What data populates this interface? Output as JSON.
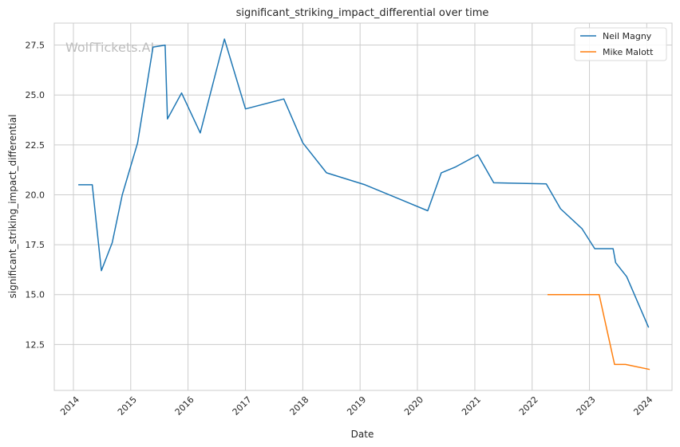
{
  "chart_data": {
    "type": "line",
    "title": "significant_striking_impact_differential over time",
    "xlabel": "Date",
    "ylabel": "significant_striking_impact_differential",
    "watermark": "WolfTickets.AI",
    "legend_position": "top-right",
    "grid": true,
    "xlim": [
      "2013-09-01",
      "2024-06-10"
    ],
    "ylim": [
      10.2,
      28.6
    ],
    "x_ticks": [
      "2014",
      "2015",
      "2016",
      "2017",
      "2018",
      "2019",
      "2020",
      "2021",
      "2022",
      "2023",
      "2024"
    ],
    "y_ticks": [
      "12.5",
      "15.0",
      "17.5",
      "20.0",
      "22.5",
      "25.0",
      "27.5"
    ],
    "series": [
      {
        "name": "Neil Magny",
        "color": "#1f77b4",
        "x": [
          "2014-02-01",
          "2014-05-01",
          "2014-06-28",
          "2014-09-05",
          "2014-11-08",
          "2015-02-14",
          "2015-05-23",
          "2015-08-08",
          "2015-08-23",
          "2015-11-21",
          "2016-03-19",
          "2016-08-20",
          "2017-01-01",
          "2017-09-02",
          "2018-01-01",
          "2018-06-01",
          "2019-02-01",
          "2020-03-07",
          "2020-06-01",
          "2020-09-01",
          "2021-01-20",
          "2021-05-01",
          "2022-04-01",
          "2022-07-01",
          "2022-11-15",
          "2023-02-04",
          "2023-06-01",
          "2023-06-17",
          "2023-08-26",
          "2024-01-13"
        ],
        "y": [
          20.5,
          20.5,
          16.2,
          17.6,
          20.0,
          22.6,
          27.4,
          27.5,
          23.8,
          25.1,
          23.1,
          27.8,
          24.3,
          24.8,
          22.6,
          21.1,
          20.5,
          19.2,
          21.1,
          21.4,
          22.0,
          20.6,
          20.55,
          19.3,
          18.3,
          17.3,
          17.3,
          16.6,
          15.9,
          13.35
        ]
      },
      {
        "name": "Mike Malott",
        "color": "#ff7f0e",
        "x": [
          "2022-04-09",
          "2023-03-04",
          "2023-06-10",
          "2023-08-19",
          "2024-01-20"
        ],
        "y": [
          15.0,
          15.0,
          11.5,
          11.5,
          11.25
        ]
      }
    ]
  }
}
